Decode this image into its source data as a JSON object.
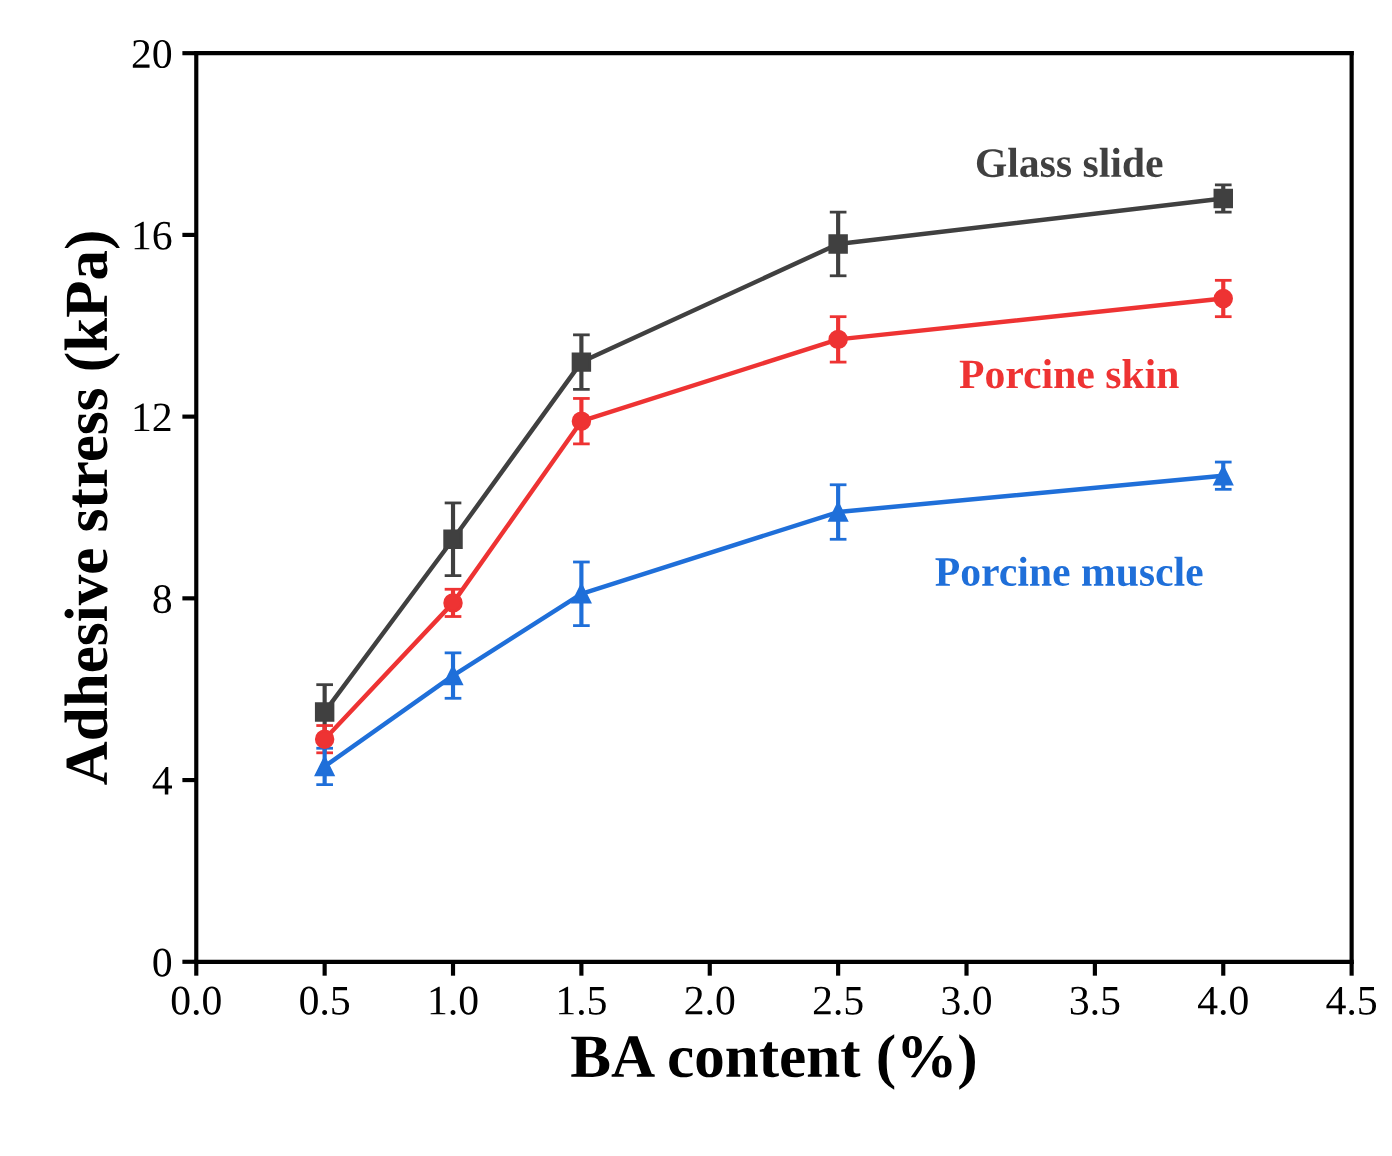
{
  "chart_data": {
    "type": "line",
    "xlabel": "BA content (%)",
    "ylabel": "Adhesive stress (kPa)",
    "x": [
      0.5,
      1.0,
      1.5,
      2.5,
      4.0
    ],
    "series": [
      {
        "name": "Glass slide",
        "color": "#404040",
        "marker": "square",
        "values": [
          5.5,
          9.3,
          13.2,
          15.8,
          16.8
        ],
        "errors": [
          0.6,
          0.8,
          0.6,
          0.7,
          0.3
        ]
      },
      {
        "name": "Porcine skin",
        "color": "#ee3333",
        "marker": "circle",
        "values": [
          4.9,
          7.9,
          11.9,
          13.7,
          14.6
        ],
        "errors": [
          0.3,
          0.3,
          0.5,
          0.5,
          0.4
        ]
      },
      {
        "name": "Porcine muscle",
        "color": "#1f6fd9",
        "marker": "triangle",
        "values": [
          4.3,
          6.3,
          8.1,
          9.9,
          10.7
        ],
        "errors": [
          0.4,
          0.5,
          0.7,
          0.6,
          0.3
        ]
      }
    ],
    "xlim": [
      0.0,
      4.5
    ],
    "xticks": [
      {
        "value": 0.0,
        "label": "0.0"
      },
      {
        "value": 0.5,
        "label": "0.5"
      },
      {
        "value": 1.0,
        "label": "1.0"
      },
      {
        "value": 1.5,
        "label": "1.5"
      },
      {
        "value": 2.0,
        "label": "2.0"
      },
      {
        "value": 2.5,
        "label": "2.5"
      },
      {
        "value": 3.0,
        "label": "3.0"
      },
      {
        "value": 3.5,
        "label": "3.5"
      },
      {
        "value": 4.0,
        "label": "4.0"
      },
      {
        "value": 4.5,
        "label": "4.5"
      }
    ],
    "ylim": [
      0,
      20
    ],
    "yticks": [
      0,
      4,
      8,
      12,
      16,
      20
    ],
    "grid": false,
    "legend": false,
    "line_style": "solid"
  }
}
